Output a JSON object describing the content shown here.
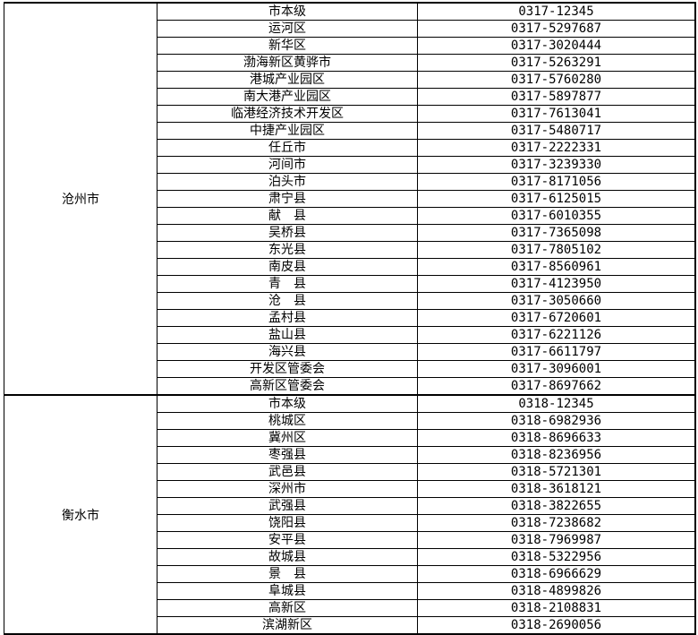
{
  "groups": [
    {
      "city": "沧州市",
      "rows": [
        [
          "市本级",
          "0317-12345"
        ],
        [
          "运河区",
          "0317-5297687"
        ],
        [
          "新华区",
          "0317-3020444"
        ],
        [
          "渤海新区黄骅市",
          "0317-5263291"
        ],
        [
          "港城产业园区",
          "0317-5760280"
        ],
        [
          "南大港产业园区",
          "0317-5897877"
        ],
        [
          "临港经济技术开发区",
          "0317-7613041"
        ],
        [
          "中捷产业园区",
          "0317-5480717"
        ],
        [
          "任丘市",
          "0317-2222331"
        ],
        [
          "河间市",
          "0317-3239330"
        ],
        [
          "泊头市",
          "0317-8171056"
        ],
        [
          "肃宁县",
          "0317-6125015"
        ],
        [
          "献　县",
          "0317-6010355"
        ],
        [
          "吴桥县",
          "0317-7365098"
        ],
        [
          "东光县",
          "0317-7805102"
        ],
        [
          "南皮县",
          "0317-8560961"
        ],
        [
          "青　县",
          "0317-4123950"
        ],
        [
          "沧　县",
          "0317-3050660"
        ],
        [
          "孟村县",
          "0317-6720601"
        ],
        [
          "盐山县",
          "0317-6221126"
        ],
        [
          "海兴县",
          "0317-6611797"
        ],
        [
          "开发区管委会",
          "0317-3096001"
        ],
        [
          "高新区管委会",
          "0317-8697662"
        ]
      ]
    },
    {
      "city": "衡水市",
      "rows": [
        [
          "市本级",
          "0318-12345"
        ],
        [
          "桃城区",
          "0318-6982936"
        ],
        [
          "冀州区",
          "0318-8696633"
        ],
        [
          "枣强县",
          "0318-8236956"
        ],
        [
          "武邑县",
          "0318-5721301"
        ],
        [
          "深州市",
          "0318-3618121"
        ],
        [
          "武强县",
          "0318-3822655"
        ],
        [
          "饶阳县",
          "0318-7238682"
        ],
        [
          "安平县",
          "0318-7969987"
        ],
        [
          "故城县",
          "0318-5322956"
        ],
        [
          "景　县",
          "0318-6966629"
        ],
        [
          "阜城县",
          "0318-4899826"
        ],
        [
          "高新区",
          "0318-2108831"
        ],
        [
          "滨湖新区",
          "0318-2690056"
        ]
      ]
    }
  ]
}
